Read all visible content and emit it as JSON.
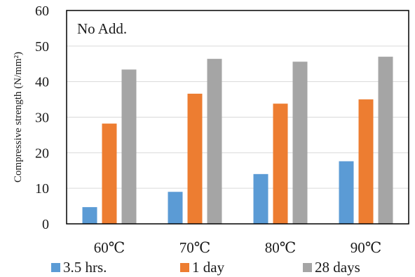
{
  "chart_data": {
    "type": "bar",
    "annotation": "No Add.",
    "ylabel": "Compressive strength (N/mm²)",
    "xlabel": "",
    "ylim": [
      0,
      60
    ],
    "yticks": [
      0,
      10,
      20,
      30,
      40,
      50,
      60
    ],
    "grid": true,
    "legend": "bottom",
    "categories": [
      "60℃",
      "70℃",
      "80℃",
      "90℃"
    ],
    "series": [
      {
        "name": "3.5 hrs.",
        "color": "#5b9bd5",
        "values": [
          4.7,
          9.0,
          14.0,
          17.6
        ]
      },
      {
        "name": "1 day",
        "color": "#ed7d31",
        "values": [
          28.2,
          36.6,
          33.8,
          35.0
        ]
      },
      {
        "name": "28 days",
        "color": "#a5a5a5",
        "values": [
          43.4,
          46.4,
          45.6,
          47.0
        ]
      }
    ]
  }
}
